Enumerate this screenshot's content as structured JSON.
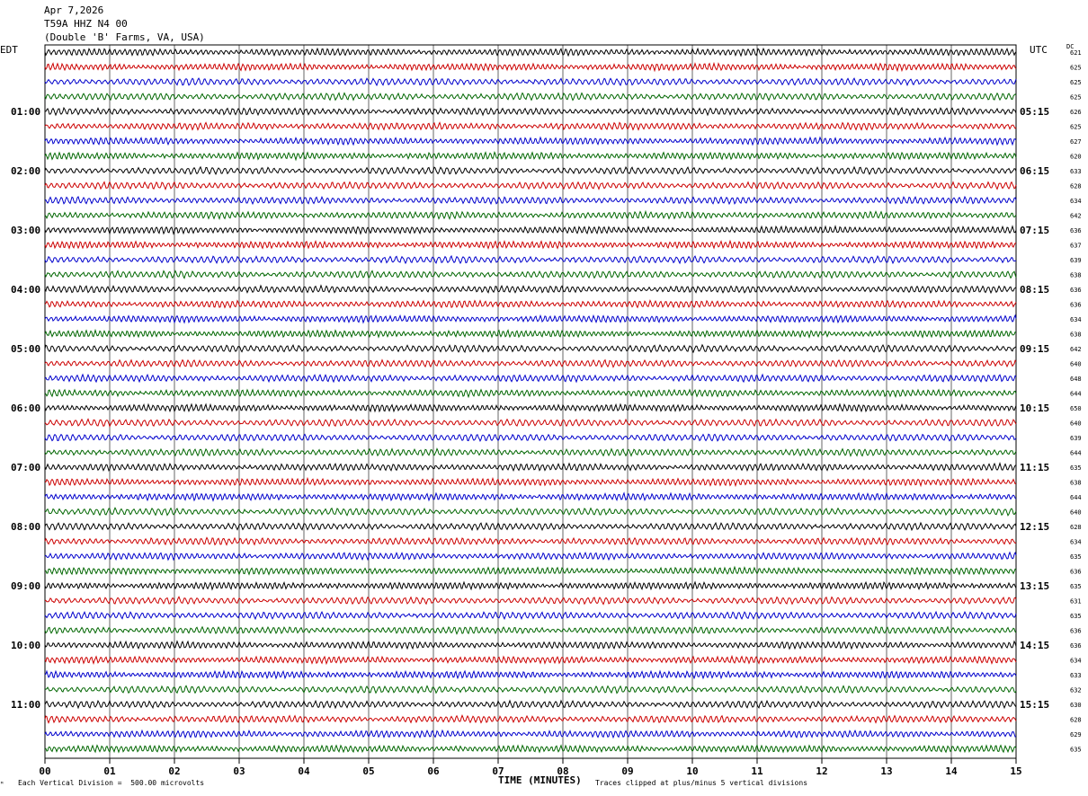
{
  "header": {
    "date": "Apr 7,2026",
    "station": "T59A HHZ N4 00",
    "location": "(Double 'B' Farms, VA, USA)"
  },
  "left_tz": "EDT",
  "right_tz": "UTC",
  "dc_label": "DC",
  "footer": {
    "scale": "Each Vertical Division =  500.00 microvolts",
    "xlabel": "TIME (MINUTES)",
    "clip": "Traces clipped at plus/minus 5 vertical divisions"
  },
  "chart_data": {
    "type": "line",
    "xlabel": "TIME (MINUTES)",
    "xlim": [
      0,
      15
    ],
    "x_ticks": [
      "00",
      "01",
      "02",
      "03",
      "04",
      "05",
      "06",
      "07",
      "08",
      "09",
      "10",
      "11",
      "12",
      "13",
      "14",
      "15"
    ],
    "left_hour_labels": [
      "01:00",
      "02:00",
      "03:00",
      "04:00",
      "05:00",
      "06:00",
      "07:00",
      "08:00",
      "09:00",
      "10:00",
      "11:00"
    ],
    "right_hour_labels": [
      "05:15",
      "06:15",
      "07:15",
      "08:15",
      "09:15",
      "10:15",
      "11:15",
      "12:15",
      "13:15",
      "14:15",
      "15:15"
    ],
    "dc_offsets": [
      "621",
      "625",
      "625",
      "625",
      "626",
      "625",
      "627",
      "620",
      "633",
      "628",
      "634",
      "642",
      "636",
      "637",
      "639",
      "638",
      "636",
      "636",
      "634",
      "638",
      "642",
      "640",
      "648",
      "644",
      "650",
      "640",
      "639",
      "644",
      "635",
      "638",
      "644",
      "640",
      "628",
      "634",
      "635",
      "636",
      "635",
      "631",
      "635",
      "636",
      "636",
      "634",
      "633",
      "632",
      "630",
      "628",
      "629",
      "635"
    ],
    "trace_colors": [
      "#000000",
      "#cc0000",
      "#0000cc",
      "#006600"
    ],
    "grid": true
  }
}
